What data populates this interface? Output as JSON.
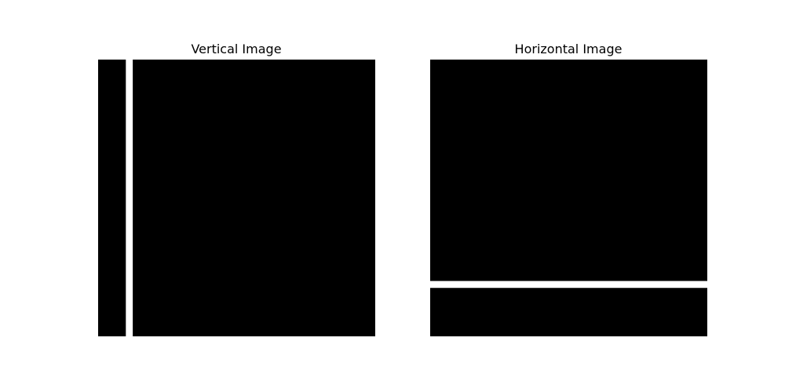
{
  "colors": {
    "background": "#ffffff",
    "ink": "#000000"
  },
  "chart_data": [
    {
      "type": "heatmap",
      "title": "Vertical Image",
      "orientation": "vertical",
      "image_shape": [
        40,
        40
      ],
      "bright_line": {
        "axis": "column",
        "index": 4,
        "value": 1
      },
      "background_value": 0,
      "axes_visible": false
    },
    {
      "type": "heatmap",
      "title": "Horizontal Image",
      "orientation": "horizontal",
      "image_shape": [
        40,
        40
      ],
      "bright_line": {
        "axis": "row",
        "index": 32,
        "value": 1
      },
      "background_value": 0,
      "axes_visible": false
    }
  ]
}
